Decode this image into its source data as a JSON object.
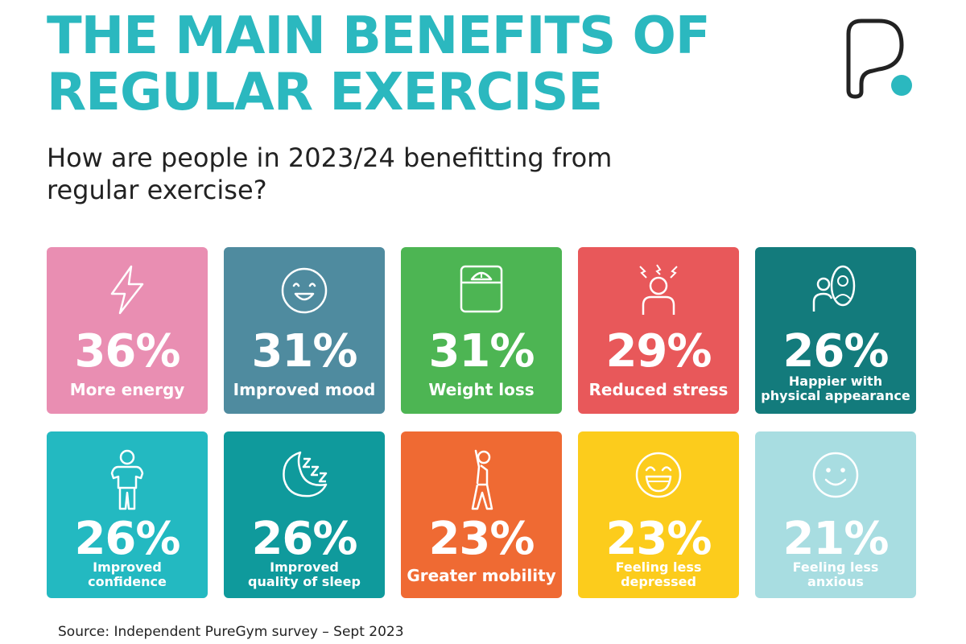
{
  "header": {
    "title_line1": "THE MAIN BENEFITS OF",
    "title_line2": "REGULAR EXERCISE",
    "subtitle_line1": "How are people in 2023/24 benefitting from",
    "subtitle_line2": "regular exercise?"
  },
  "tiles": [
    {
      "value": "36%",
      "label1": "More energy",
      "label2": "",
      "color": "#e98eb2",
      "icon": "lightning-icon"
    },
    {
      "value": "31%",
      "label1": "Improved mood",
      "label2": "",
      "color": "#4f8b9f",
      "icon": "smiley-icon"
    },
    {
      "value": "31%",
      "label1": "Weight loss",
      "label2": "",
      "color": "#4db553",
      "icon": "scale-icon"
    },
    {
      "value": "29%",
      "label1": "Reduced stress",
      "label2": "",
      "color": "#e8585a",
      "icon": "stressed-person-icon"
    },
    {
      "value": "26%",
      "label1": "Happier with",
      "label2": "physical appearance",
      "color": "#137b7c",
      "icon": "mirror-person-icon"
    },
    {
      "value": "26%",
      "label1": "Improved",
      "label2": "confidence",
      "color": "#23b9c1",
      "icon": "confident-person-icon"
    },
    {
      "value": "26%",
      "label1": "Improved",
      "label2": "quality of sleep",
      "color": "#0f9a9c",
      "icon": "moon-sleep-icon"
    },
    {
      "value": "23%",
      "label1": "Greater mobility",
      "label2": "",
      "color": "#ef6a33",
      "icon": "stretching-person-icon"
    },
    {
      "value": "23%",
      "label1": "Feeling less",
      "label2": "depressed",
      "color": "#fccc1c",
      "icon": "laughing-face-icon"
    },
    {
      "value": "21%",
      "label1": "Feeling less",
      "label2": "anxious",
      "color": "#a8dde1",
      "icon": "calm-face-icon"
    }
  ],
  "footer": {
    "source": "Source: Independent PureGym survey – Sept 2023"
  },
  "colors": {
    "title": "#2bb8bf",
    "logo_dot": "#2bb8bf"
  }
}
